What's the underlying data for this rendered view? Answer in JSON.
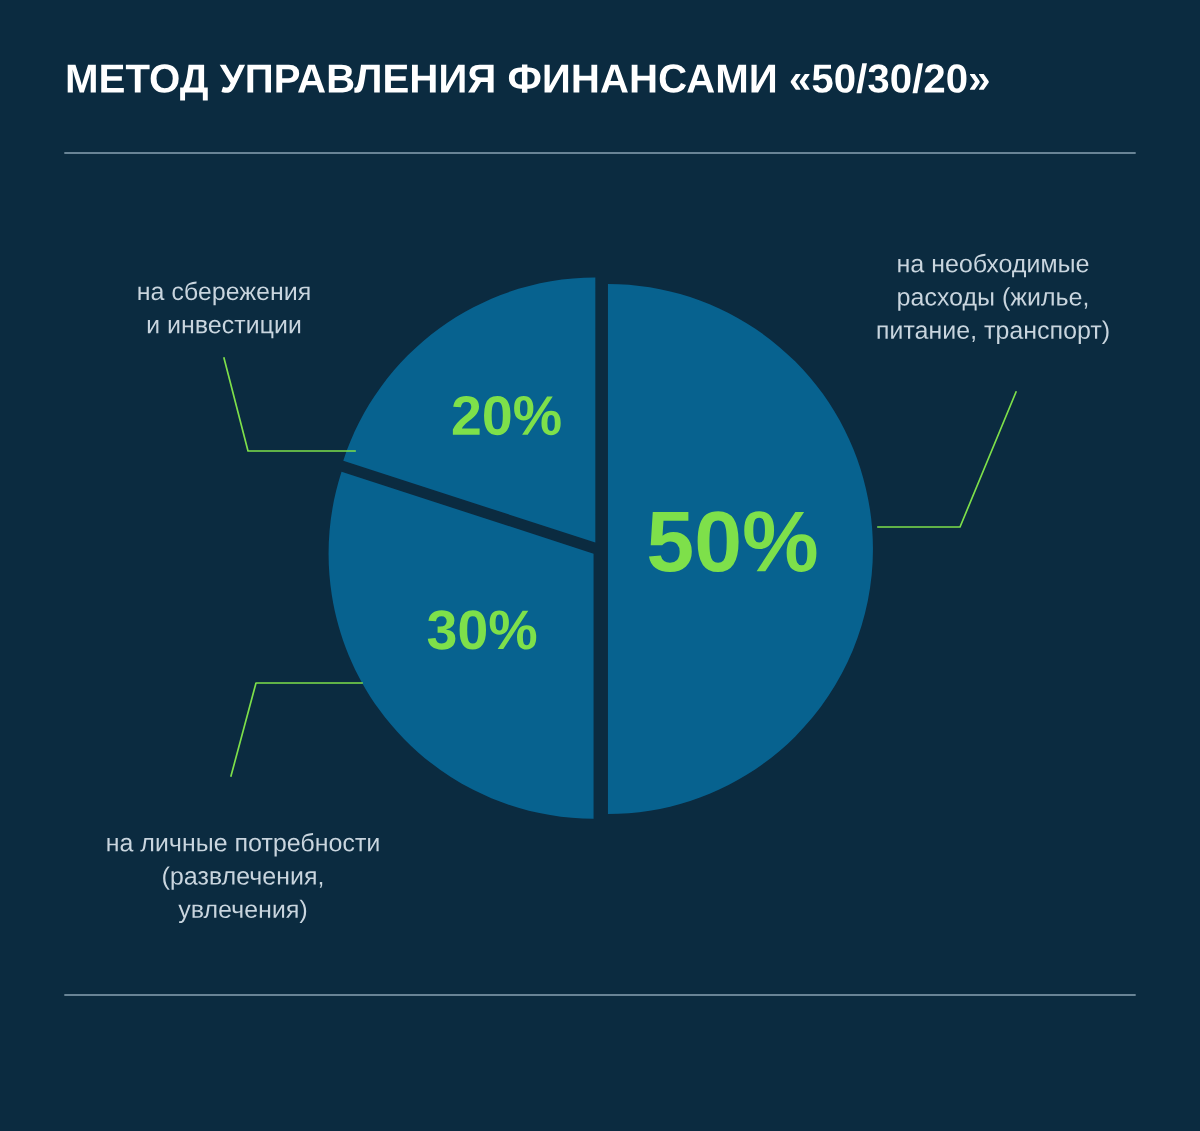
{
  "chart_data": {
    "type": "pie",
    "title": "МЕТОД УПРАВЛЕНИЯ ФИНАНСАМИ «50/30/20»",
    "categories": [
      "на необходимые\nрасходы (жилье,\nпитание, транспорт)",
      "на личные потребности\n(развлечения,\nувлечения)",
      "на сбережения\nи инвестиции"
    ],
    "values": [
      50,
      30,
      20
    ],
    "colors": [
      "#07628f",
      "#07628f",
      "#07628f"
    ],
    "value_labels": [
      "50%",
      "30%",
      "20%"
    ]
  }
}
